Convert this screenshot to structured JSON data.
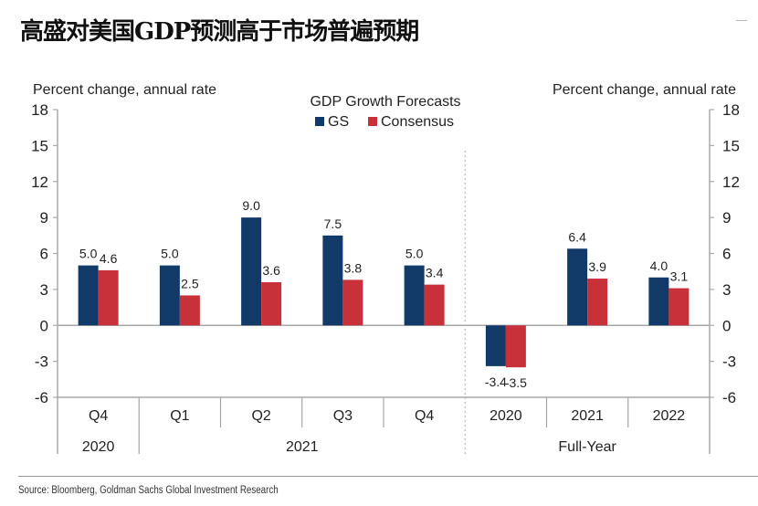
{
  "title": "高盛对美国GDP预测高于市场普遍预期",
  "source": "Source: Bloomberg, Goldman Sachs Global Investment Research",
  "chart_data": {
    "type": "bar",
    "title": "GDP Growth Forecasts",
    "ylabel_left": "Percent change, annual rate",
    "ylabel_right": "Percent change, annual rate",
    "ylim": [
      -6,
      18
    ],
    "yticks": [
      18,
      15,
      12,
      9,
      6,
      3,
      0,
      -3,
      -6
    ],
    "legend": {
      "placement": "top-center",
      "entries": [
        {
          "name": "GS",
          "color": "#123a68"
        },
        {
          "name": "Consensus",
          "color": "#c8303a"
        }
      ]
    },
    "categories": [
      "Q4",
      "Q1",
      "Q2",
      "Q3",
      "Q4",
      "2020",
      "2021",
      "2022"
    ],
    "groups": [
      {
        "label": "2020",
        "span": [
          0,
          0
        ]
      },
      {
        "label": "2021",
        "span": [
          1,
          4
        ]
      },
      {
        "label": "Full-Year",
        "span": [
          5,
          7
        ]
      }
    ],
    "series": [
      {
        "name": "GS",
        "color": "#123a68",
        "values": [
          5.0,
          5.0,
          9.0,
          7.5,
          5.0,
          -3.4,
          6.4,
          4.0
        ],
        "labels": [
          "5.0",
          "5.0",
          "9.0",
          "7.5",
          "5.0",
          "-3.4",
          "6.4",
          "4.0"
        ]
      },
      {
        "name": "Consensus",
        "color": "#c8303a",
        "values": [
          4.6,
          2.5,
          3.6,
          3.8,
          3.4,
          -3.5,
          3.9,
          3.1
        ],
        "labels": [
          "4.6",
          "2.5",
          "3.6",
          "3.8",
          "3.4",
          "-3.5",
          "3.9",
          "3.1"
        ]
      }
    ],
    "annotations": [
      {
        "type": "dashed-divider",
        "between": [
          "Q4",
          "2020"
        ]
      }
    ]
  }
}
